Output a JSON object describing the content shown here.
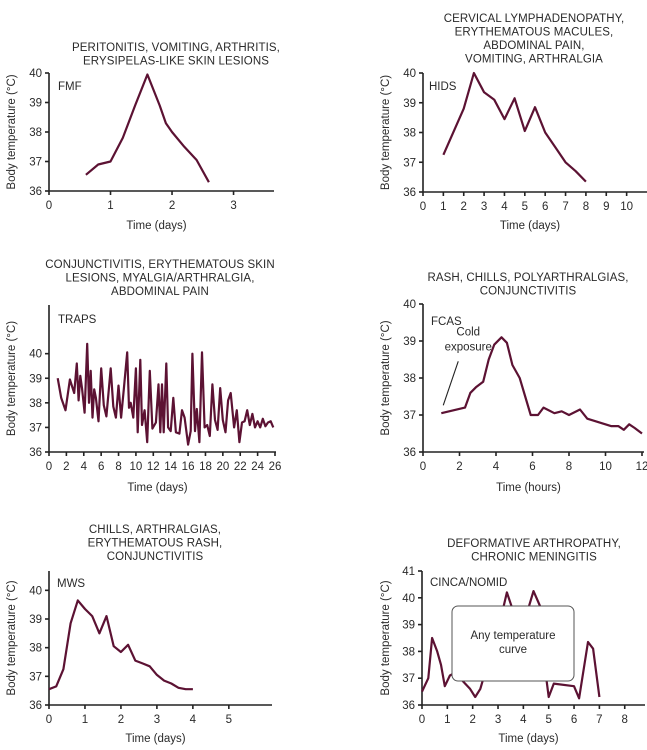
{
  "line_color": "#5c1233",
  "chart_data": [
    {
      "type": "line",
      "panel_label": "FMF",
      "title_lines": [
        "PERITONITIS, VOMITING, ARTHRITIS,",
        "ERYSIPELAS-LIKE SKIN LESIONS"
      ],
      "xlabel": "Time (days)",
      "ylabel": "Body temperature (°C)",
      "xlim": [
        0,
        3.3
      ],
      "ylim": [
        36,
        40
      ],
      "xticks": [
        0,
        1,
        2,
        3
      ],
      "yticks": [
        36,
        37,
        38,
        39,
        40
      ],
      "x": [
        0.6,
        0.8,
        1.0,
        1.2,
        1.4,
        1.6,
        1.8,
        1.9,
        2.0,
        2.2,
        2.4,
        2.6
      ],
      "y": [
        36.55,
        36.9,
        37.0,
        37.8,
        38.9,
        39.95,
        38.9,
        38.3,
        38.0,
        37.5,
        37.05,
        36.3
      ]
    },
    {
      "type": "line",
      "panel_label": "HIDS",
      "title_lines": [
        "CERVICAL LYMPHADENOPATHY,",
        "ERYTHEMATOUS MACULES,",
        "ABDOMINAL PAIN,",
        "VOMITING, ARTHRALGIA"
      ],
      "xlabel": "Time (days)",
      "ylabel": "Body temperature (°C)",
      "xlim": [
        0,
        11
      ],
      "ylim": [
        36,
        40
      ],
      "xticks": [
        0,
        1,
        2,
        3,
        4,
        5,
        6,
        7,
        8,
        9,
        10
      ],
      "yticks": [
        36,
        37,
        38,
        39,
        40
      ],
      "x": [
        1,
        2,
        2.5,
        3,
        3.5,
        4,
        4.5,
        5,
        5.5,
        6,
        6.5,
        7,
        7.5,
        8
      ],
      "y": [
        37.25,
        38.8,
        40.0,
        39.35,
        39.1,
        38.45,
        39.15,
        38.05,
        38.85,
        38.0,
        37.5,
        37.0,
        36.7,
        36.35
      ]
    },
    {
      "type": "line",
      "panel_label": "TRAPS",
      "title_lines": [
        "CONJUNCTIVITIS, ERYTHEMATOUS SKIN",
        "LESIONS, MYALGIA/ARTHRALGIA,",
        "ABDOMINAL PAIN"
      ],
      "xlabel": "Time (days)",
      "ylabel": "Body temperature (°C)",
      "xlim": [
        0,
        26
      ],
      "ylim": [
        36,
        40.8
      ],
      "xticks": [
        0,
        2,
        4,
        6,
        8,
        10,
        12,
        14,
        16,
        18,
        20,
        22,
        24,
        26
      ],
      "yticks": [
        36,
        37,
        38,
        39,
        40
      ],
      "x": [
        1.0,
        1.4,
        1.9,
        2.4,
        2.9,
        3.2,
        3.4,
        3.6,
        3.8,
        4.1,
        4.4,
        4.6,
        4.8,
        5.0,
        5.2,
        5.4,
        5.7,
        6.0,
        6.3,
        6.6,
        7.1,
        7.4,
        7.7,
        8.0,
        8.3,
        8.6,
        9.0,
        9.2,
        9.4,
        9.7,
        10.0,
        10.2,
        10.5,
        10.7,
        11.0,
        11.3,
        11.6,
        11.9,
        12.3,
        12.6,
        12.8,
        13.0,
        13.2,
        13.5,
        13.7,
        14.0,
        14.3,
        14.6,
        15.0,
        15.3,
        15.6,
        16.0,
        16.3,
        16.5,
        16.8,
        17.0,
        17.3,
        17.6,
        17.9,
        18.2,
        18.5,
        18.8,
        19.1,
        19.4,
        19.7,
        20.0,
        20.3,
        20.6,
        20.9,
        21.3,
        21.6,
        21.9,
        22.2,
        22.5,
        22.8,
        23.1,
        23.4,
        23.7,
        24.0,
        24.3,
        24.6,
        24.9,
        25.2,
        25.5,
        25.8
      ],
      "y": [
        39.0,
        38.2,
        37.7,
        38.95,
        38.4,
        39.6,
        38.1,
        39.1,
        38.6,
        37.6,
        40.4,
        38.0,
        39.3,
        37.4,
        38.55,
        38.2,
        37.25,
        39.4,
        37.9,
        37.45,
        39.4,
        37.85,
        37.4,
        38.7,
        37.4,
        38.55,
        40.05,
        37.8,
        38.0,
        37.4,
        39.4,
        36.8,
        39.75,
        37.1,
        37.7,
        36.4,
        39.3,
        36.95,
        37.2,
        38.75,
        36.8,
        38.75,
        36.8,
        39.6,
        37.0,
        36.85,
        38.2,
        36.8,
        36.75,
        37.7,
        37.4,
        36.3,
        36.85,
        40.0,
        36.85,
        37.75,
        36.4,
        40.05,
        37.0,
        37.1,
        36.65,
        38.75,
        37.3,
        36.9,
        38.6,
        37.3,
        36.8,
        38.1,
        38.4,
        37.0,
        37.7,
        36.4,
        37.2,
        37.25,
        37.7,
        37.1,
        37.55,
        37.0,
        37.25,
        37.0,
        37.35,
        37.05,
        37.2,
        37.25,
        37.0
      ]
    },
    {
      "type": "line",
      "panel_label": "FCAS",
      "title_lines": [
        "RASH, CHILLS, POLYARTHRALGIAS,",
        "CONJUNCTIVITIS"
      ],
      "xlabel": "Time (hours)",
      "ylabel": "Body temperature (°C)",
      "xlim": [
        0,
        12
      ],
      "ylim": [
        36,
        40
      ],
      "xticks": [
        0,
        2,
        4,
        6,
        8,
        10,
        12
      ],
      "yticks": [
        36,
        37,
        38,
        39,
        40
      ],
      "annotation": [
        "Cold",
        "exposure"
      ],
      "x": [
        1.0,
        2.3,
        2.6,
        2.9,
        3.3,
        3.6,
        3.9,
        4.3,
        4.6,
        4.9,
        5.3,
        5.6,
        5.9,
        6.3,
        6.6,
        7.2,
        7.6,
        8.0,
        8.6,
        9.0,
        10.3,
        10.7,
        11.0,
        11.3,
        11.6,
        12.0
      ],
      "y": [
        37.05,
        37.2,
        37.6,
        37.75,
        37.9,
        38.5,
        38.9,
        39.1,
        38.95,
        38.35,
        38.0,
        37.5,
        37.0,
        37.0,
        37.2,
        37.05,
        37.1,
        37.0,
        37.15,
        36.9,
        36.7,
        36.7,
        36.6,
        36.75,
        36.65,
        36.5
      ]
    },
    {
      "type": "line",
      "panel_label": "MWS",
      "title_lines": [
        "CHILLS, ARTHRALGIAS,",
        "ERYTHEMATOUS RASH,",
        "CONJUNCTIVITIS"
      ],
      "xlabel": "Time (days)",
      "ylabel": "Body temperature (°C)",
      "xlim": [
        0,
        6.2
      ],
      "ylim": [
        36,
        40.5
      ],
      "xticks": [
        0,
        1,
        2,
        3,
        4,
        5
      ],
      "yticks": [
        36,
        37,
        38,
        39,
        40
      ],
      "x": [
        0,
        0.2,
        0.4,
        0.6,
        0.8,
        1.0,
        1.2,
        1.4,
        1.6,
        1.8,
        2.0,
        2.2,
        2.4,
        2.6,
        2.8,
        3.0,
        3.2,
        3.4,
        3.6,
        3.8,
        4.0
      ],
      "y": [
        36.55,
        36.65,
        37.25,
        38.85,
        39.65,
        39.35,
        39.1,
        38.5,
        39.1,
        38.05,
        37.85,
        38.1,
        37.55,
        37.45,
        37.35,
        37.05,
        36.85,
        36.75,
        36.6,
        36.55,
        36.55
      ]
    },
    {
      "type": "line",
      "panel_label": "CINCA/NOMID",
      "title_lines": [
        "DEFORMATIVE ARTHROPATHY,",
        "CHRONIC MENINGITIS"
      ],
      "xlabel": "Time (days)",
      "ylabel": "Body temperature (°C)",
      "xlim": [
        0,
        8.8
      ],
      "ylim": [
        36,
        41
      ],
      "xticks": [
        0,
        1,
        2,
        3,
        4,
        5,
        6,
        7,
        8
      ],
      "yticks": [
        36,
        37,
        38,
        39,
        40,
        41
      ],
      "overlay_box_text": [
        "Any temperature",
        "curve"
      ],
      "x": [
        0,
        0.25,
        0.4,
        0.6,
        0.75,
        0.9,
        1.1,
        1.3,
        1.9,
        2.1,
        2.3,
        3.1,
        3.35,
        3.6,
        4.1,
        4.4,
        4.7,
        4.85,
        5.0,
        5.2,
        6.0,
        6.2,
        6.55,
        6.75,
        7.0
      ],
      "y": [
        36.5,
        37.0,
        38.5,
        38.0,
        37.5,
        36.7,
        37.1,
        37.2,
        36.6,
        36.3,
        36.6,
        39.2,
        40.2,
        39.5,
        39.3,
        40.25,
        39.6,
        37.4,
        36.3,
        36.8,
        36.7,
        36.25,
        38.35,
        38.1,
        36.3
      ]
    }
  ]
}
